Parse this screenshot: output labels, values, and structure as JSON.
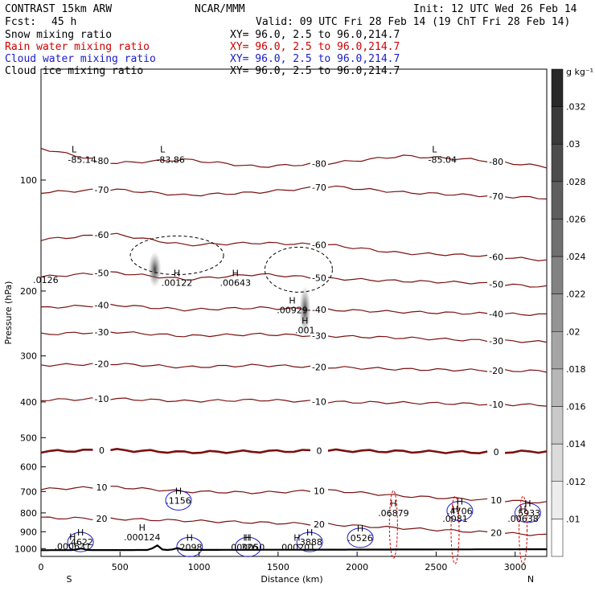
{
  "header": {
    "title": "CONTRAST 15km ARW",
    "center": "NCAR/MMM",
    "init": "Init: 12 UTC Wed 26 Feb 14",
    "fcst_label": "Fcst:",
    "fcst_value": "45 h",
    "valid": "Valid: 09 UTC Fri 28 Feb 14 (19 ChT Fri 28 Feb 14)"
  },
  "fields": [
    {
      "name": "Snow mixing ratio",
      "xy": "XY=  96.0,  2.5 to  96.0,214.7",
      "color": "#000000"
    },
    {
      "name": "Rain water mixing ratio",
      "xy": "XY=  96.0,  2.5 to  96.0,214.7",
      "color": "#d00000"
    },
    {
      "name": "Cloud water mixing ratio",
      "xy": "XY=  96.0,  2.5 to  96.0,214.7",
      "color": "#1a1acc"
    },
    {
      "name": "Cloud ice mixing ratio",
      "xy": "XY=  96.0,  2.5 to  96.0,214.7",
      "color": "#000000"
    }
  ],
  "colorbar": {
    "unit": "g kg⁻¹",
    "labels": [
      ".032",
      ".03",
      ".028",
      ".026",
      ".024",
      ".022",
      ".02",
      ".018",
      ".016",
      ".014",
      ".012",
      ".01"
    ]
  },
  "chart_data": {
    "type": "contour",
    "xlabel": "Distance (km)",
    "ylabel": "Pressure (hPa)",
    "xlim": [
      0,
      3200
    ],
    "ylim": [
      1050,
      50
    ],
    "y_scale": "log",
    "x_ticks": [
      0,
      500,
      1000,
      1500,
      2000,
      2500,
      3000
    ],
    "y_ticks": [
      100,
      200,
      300,
      400,
      500,
      600,
      700,
      800,
      900,
      1000
    ],
    "endpoints": {
      "left": "S",
      "right": "N"
    },
    "temperature_isotherm_color": "#7a1010",
    "isotherms_C": [
      {
        "value": -80,
        "p": [
          82,
          90,
          88,
          92,
          90,
          86,
          88,
          92
        ]
      },
      {
        "value": -70,
        "p": [
          108,
          106,
          110,
          108,
          104,
          108,
          110,
          112
        ]
      },
      {
        "value": -60,
        "p": [
          145,
          140,
          150,
          148,
          150,
          158,
          160,
          165
        ]
      },
      {
        "value": -50,
        "p": [
          183,
          178,
          186,
          180,
          185,
          188,
          190,
          195
        ]
      },
      {
        "value": -40,
        "p": [
          222,
          218,
          225,
          222,
          225,
          228,
          230,
          232
        ]
      },
      {
        "value": -30,
        "p": [
          262,
          258,
          265,
          262,
          265,
          268,
          272,
          275
        ]
      },
      {
        "value": -20,
        "p": [
          318,
          315,
          322,
          318,
          322,
          326,
          328,
          330
        ]
      },
      {
        "value": -10,
        "p": [
          395,
          392,
          398,
          395,
          400,
          402,
          405,
          408
        ]
      },
      {
        "value": 0,
        "p": [
          545,
          540,
          548,
          545,
          542,
          545,
          548,
          545
        ]
      },
      {
        "value": 10,
        "p": [
          690,
          680,
          700,
          705,
          695,
          720,
          735,
          750
        ]
      },
      {
        "value": 20,
        "p": [
          825,
          830,
          840,
          850,
          860,
          880,
          900,
          920
        ]
      }
    ],
    "snow_maxima": [
      {
        "label": ".00122",
        "x": 860,
        "p": 190
      },
      {
        "label": ".00643",
        "x": 1230,
        "p": 190
      },
      {
        "label": ".00929",
        "x": 1590,
        "p": 225
      },
      {
        "label": ".001",
        "x": 1670,
        "p": 255
      }
    ],
    "rain_maxima": [
      {
        "label": ".000631",
        "x": 200,
        "p": 985
      },
      {
        "label": ".000124",
        "x": 640,
        "p": 930
      },
      {
        "label": ".000050",
        "x": 1300,
        "p": 990
      },
      {
        "label": ".000201",
        "x": 1620,
        "p": 990
      },
      {
        "label": ".06879",
        "x": 2230,
        "p": 800
      },
      {
        "label": ".0081",
        "x": 2620,
        "p": 830
      },
      {
        "label": ".00638",
        "x": 3050,
        "p": 830
      }
    ],
    "cloudwater_maxima": [
      {
        "label": ".4622",
        "x": 250,
        "p": 960
      },
      {
        "label": ".1156",
        "x": 870,
        "p": 740
      },
      {
        "label": ".2098",
        "x": 940,
        "p": 990
      },
      {
        "label": ".326",
        "x": 1310,
        "p": 990
      },
      {
        "label": ".3888",
        "x": 1700,
        "p": 960
      },
      {
        "label": ".0526",
        "x": 2020,
        "p": 935
      },
      {
        "label": ".4706",
        "x": 2650,
        "p": 790
      },
      {
        "label": ".5933",
        "x": 3080,
        "p": 800
      }
    ],
    "terrain_peaks_km": [
      250,
      730,
      860
    ],
    "extremes": {
      "min_labels": [
        {
          "text": "-85.14",
          "x": 260,
          "p": 85
        },
        {
          "text": "-83.86",
          "x": 820,
          "p": 85
        },
        {
          "text": "-85.04",
          "x": 2540,
          "p": 85
        },
        {
          "text": ".0126",
          "x": 30,
          "p": 180
        }
      ]
    }
  }
}
